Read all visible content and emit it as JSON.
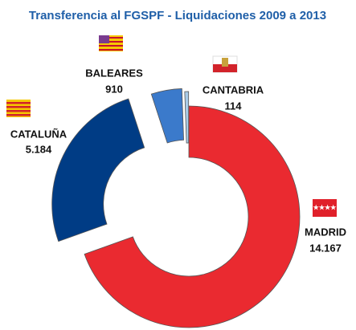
{
  "chart_data": {
    "type": "donut",
    "title": "Transferencia al FGSPF - Liquidaciones 2009 a 2013",
    "categories": [
      "MADRID",
      "CATALUÑA",
      "BALEARES",
      "CANTABRIA"
    ],
    "values": [
      14167,
      5184,
      910,
      114
    ],
    "value_labels": [
      "14.167",
      "5.184",
      "910",
      "114"
    ],
    "colors": [
      "#ea2a30",
      "#003c85",
      "#3b7acb",
      "#a9cbe8"
    ]
  }
}
